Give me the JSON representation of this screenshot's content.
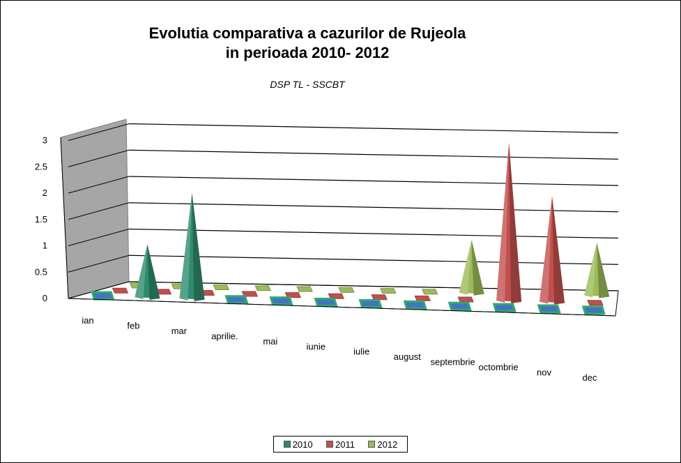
{
  "title": {
    "line1": "Evolutia comparativa a cazurilor de Rujeola",
    "line2": "in perioada 2010- 2012"
  },
  "subtitle": "DSP TL - SSCBT",
  "chart_data": {
    "type": "bar",
    "style": "3d-cone",
    "categories": [
      "ian",
      "feb",
      "mar",
      "aprilie.",
      "mai",
      "iunie",
      "iulie",
      "august",
      "septembrie",
      "octombrie",
      "nov",
      "dec"
    ],
    "series": [
      {
        "name": "2010",
        "color": "#2e8b6e",
        "values": [
          0,
          1,
          2,
          0,
          0,
          0,
          0,
          0,
          0,
          0,
          0,
          0
        ]
      },
      {
        "name": "2011",
        "color": "#c0504d",
        "values": [
          0,
          0,
          0,
          0,
          0,
          0,
          0,
          0,
          0,
          3,
          2,
          0
        ]
      },
      {
        "name": "2012",
        "color": "#9bbb59",
        "values": [
          0,
          0,
          0,
          0,
          0,
          0,
          0,
          0,
          1,
          0,
          0,
          1
        ]
      }
    ],
    "y_ticks": [
      "0",
      "0.5",
      "1",
      "1.5",
      "2",
      "2.5",
      "3"
    ],
    "ylim": [
      0,
      3
    ],
    "grid": true,
    "legend_position": "bottom"
  }
}
